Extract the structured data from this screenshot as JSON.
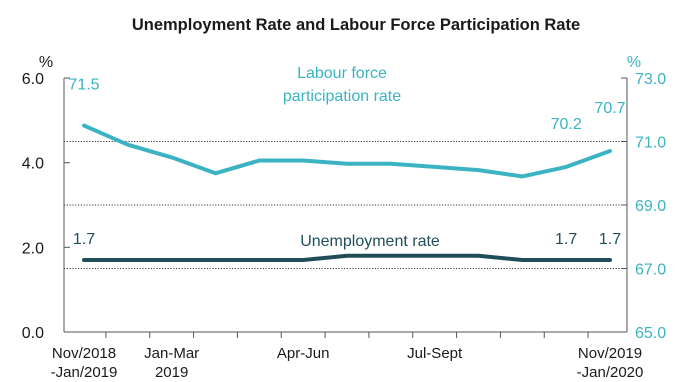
{
  "chart_data": {
    "type": "line",
    "title": "Unemployment Rate and Labour Force Participation Rate",
    "unit_left": "%",
    "unit_right": "%",
    "x_tick_labels": [
      {
        "index": 0,
        "line1": "Nov/2018",
        "line2": "-Jan/2019"
      },
      {
        "index": 2,
        "line1": "Jan-Mar",
        "line2": "2019"
      },
      {
        "index": 5,
        "line1": "Apr-Jun",
        "line2": ""
      },
      {
        "index": 8,
        "line1": "Jul-Sept",
        "line2": ""
      },
      {
        "index": 12,
        "line1": "Nov/2019",
        "line2": "-Jan/2020"
      }
    ],
    "x_count": 13,
    "y_left": {
      "min": 0,
      "max": 6,
      "ticks": [
        "0.0",
        "2.0",
        "4.0",
        "6.0"
      ],
      "tick_values": [
        0,
        2,
        4,
        6
      ]
    },
    "y_right": {
      "min": 65,
      "max": 73,
      "ticks": [
        "65.0",
        "67.0",
        "69.0",
        "71.0",
        "73.0"
      ],
      "tick_values": [
        65,
        67,
        69,
        71,
        73
      ]
    },
    "gridlines_right": [
      67,
      69,
      71
    ],
    "series": [
      {
        "name": "Labour force participation rate",
        "label_line1": "Labour force",
        "label_line2": "participation rate",
        "axis": "right",
        "color": "#3bb3c3",
        "values": [
          71.5,
          70.9,
          70.5,
          70.0,
          70.4,
          70.4,
          70.3,
          70.3,
          70.2,
          70.1,
          69.9,
          70.2,
          70.7
        ],
        "data_labels": [
          {
            "index": 0,
            "text": "71.5"
          },
          {
            "index": 11,
            "text": "70.2"
          },
          {
            "index": 12,
            "text": "70.7"
          }
        ]
      },
      {
        "name": "Unemployment rate",
        "label_line1": "Unemployment rate",
        "axis": "left",
        "color": "#1f4e5a",
        "values": [
          1.7,
          1.7,
          1.7,
          1.7,
          1.7,
          1.7,
          1.8,
          1.8,
          1.8,
          1.8,
          1.7,
          1.7,
          1.7
        ],
        "data_labels": [
          {
            "index": 0,
            "text": "1.7"
          },
          {
            "index": 11,
            "text": "1.7"
          },
          {
            "index": 12,
            "text": "1.7"
          }
        ]
      }
    ]
  }
}
